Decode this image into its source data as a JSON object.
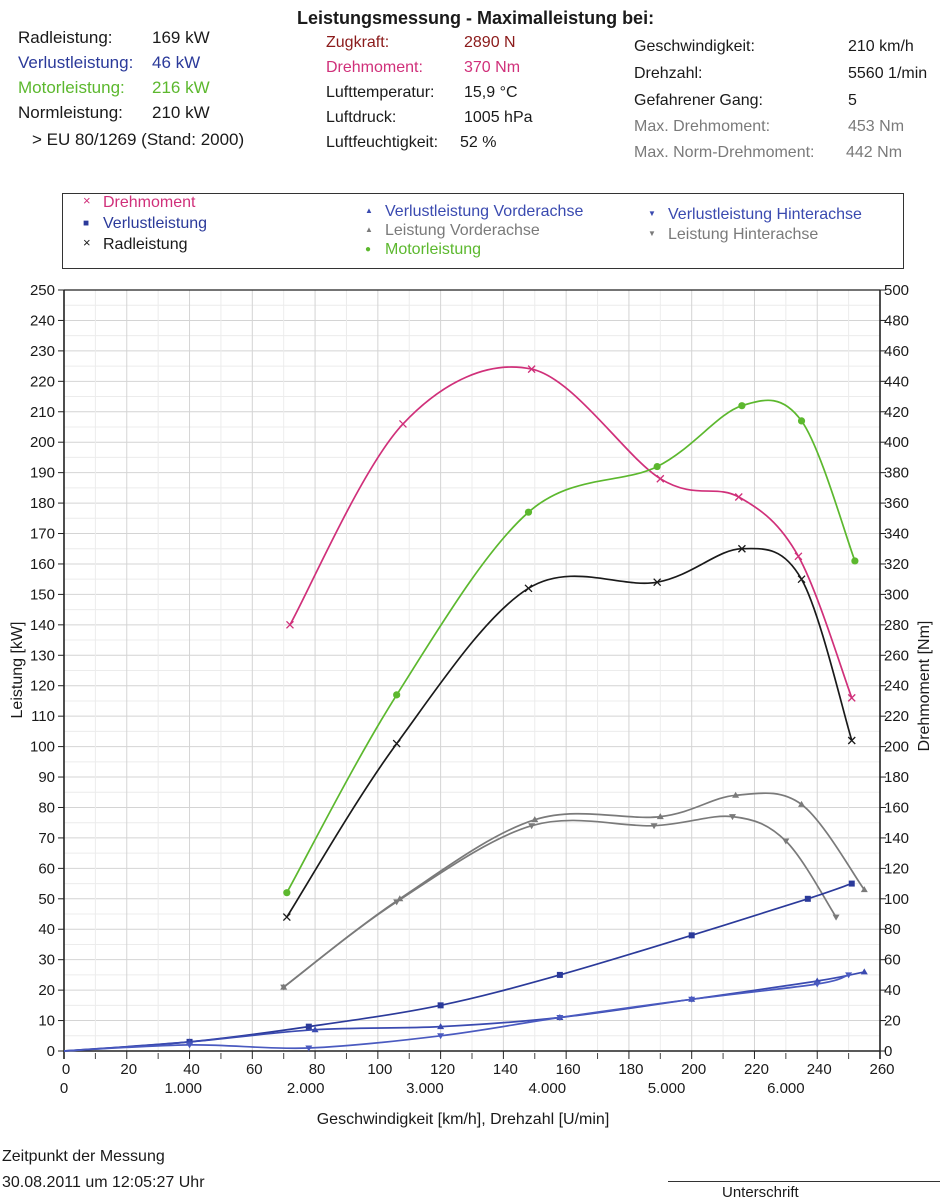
{
  "summary": [
    {
      "label": "Radleistung:",
      "value": "169 kW",
      "color": "#1a1a1a"
    },
    {
      "label": "Verlustleistung:",
      "value": "46 kW",
      "color": "#2b3a9a"
    },
    {
      "label": "Motorleistung:",
      "value": "216 kW",
      "color": "#5cb82e"
    },
    {
      "label": "Normleistung:",
      "value": "210 kW",
      "color": "#1a1a1a"
    }
  ],
  "norm_note": "> EU 80/1269 (Stand: 2000)",
  "title": "Leistungsmessung - Maximalleistung bei:",
  "mid": [
    {
      "label": "Zugkraft:",
      "value": "2890 N",
      "color": "#8b1a1a"
    },
    {
      "label": "Drehmoment:",
      "value": "370 Nm",
      "color": "#d0307a"
    },
    {
      "label": "Lufttemperatur:",
      "value": "15,9 °C",
      "color": "#1a1a1a"
    },
    {
      "label": "Luftdruck:",
      "value": "1005 hPa",
      "color": "#1a1a1a"
    },
    {
      "label": "Luftfeuchtigkeit:",
      "value": "52 %",
      "color": "#1a1a1a"
    }
  ],
  "right": [
    {
      "label": "Geschwindigkeit:",
      "value": "210 km/h",
      "color": "#1a1a1a"
    },
    {
      "label": "Drehzahl:",
      "value": "5560 1/min",
      "color": "#1a1a1a"
    },
    {
      "label": "Gefahrener Gang:",
      "value": "5",
      "color": "#1a1a1a"
    },
    {
      "label": "Max. Drehmoment:",
      "value": "453 Nm",
      "color": "#7a7a7a"
    },
    {
      "label": "Max. Norm-Drehmoment:",
      "value": "442 Nm",
      "color": "#7a7a7a"
    }
  ],
  "legend": [
    {
      "label": "Drehmoment",
      "marker": "×",
      "color": "#d0307a"
    },
    {
      "label": "Verlustleistung",
      "marker": "■",
      "color": "#2b3a9a"
    },
    {
      "label": "Radleistung",
      "marker": "×",
      "color": "#1a1a1a"
    },
    {
      "label": "Verlustleistung Vorderachse",
      "marker": "▲",
      "color": "#3a4ab0"
    },
    {
      "label": "Leistung Vorderachse",
      "marker": "▲",
      "color": "#7a7a7a"
    },
    {
      "label": "Motorleistung",
      "marker": "●",
      "color": "#5cb82e"
    },
    {
      "label": "Verlustleistung Hinterachse",
      "marker": "▼",
      "color": "#3a4ab0"
    },
    {
      "label": "Leistung Hinterachse",
      "marker": "▼",
      "color": "#7a7a7a"
    }
  ],
  "footer": {
    "caption": "Zeitpunkt der Messung",
    "timestamp": "30.08.2011 um 12:05:27 Uhr",
    "signature": "Unterschrift"
  },
  "chart_data": {
    "type": "line",
    "ylabel": "Leistung [kW]",
    "y2label": "Drehmoment [Nm]",
    "xlabel": "Geschwindigkeit [km/h], Drehzahl [U/min]",
    "xlim": [
      0,
      260
    ],
    "ylim": [
      0,
      250
    ],
    "y2lim": [
      0,
      500
    ],
    "x_ticks": [
      0,
      20,
      40,
      60,
      80,
      100,
      120,
      140,
      160,
      180,
      200,
      220,
      240,
      260
    ],
    "rpm_ticks": [
      {
        "label": "0",
        "x": 0
      },
      {
        "label": "1.000",
        "x": 38
      },
      {
        "label": "2.000",
        "x": 77
      },
      {
        "label": "3.000",
        "x": 115
      },
      {
        "label": "4.000",
        "x": 154
      },
      {
        "label": "5.000",
        "x": 192
      },
      {
        "label": "6.000",
        "x": 230
      }
    ],
    "y_ticks": [
      0,
      10,
      20,
      30,
      40,
      50,
      60,
      70,
      80,
      90,
      100,
      110,
      120,
      130,
      140,
      150,
      160,
      170,
      180,
      190,
      200,
      210,
      220,
      230,
      240,
      250
    ],
    "y2_ticks": [
      0,
      20,
      40,
      60,
      80,
      100,
      120,
      140,
      160,
      180,
      200,
      220,
      240,
      260,
      280,
      300,
      320,
      340,
      360,
      380,
      400,
      420,
      440,
      460,
      480,
      500
    ],
    "grid": true,
    "legend_position": "top",
    "series": [
      {
        "name": "Drehmoment",
        "axis": "right",
        "color": "#d0307a",
        "marker": "x",
        "x": [
          72,
          108,
          149,
          190,
          215,
          234,
          251
        ],
        "y": [
          280,
          412,
          448,
          376,
          364,
          325,
          232
        ]
      },
      {
        "name": "Motorleistung",
        "axis": "left",
        "color": "#5cb82e",
        "marker": "o",
        "x": [
          71,
          106,
          148,
          189,
          216,
          235,
          252
        ],
        "y": [
          52,
          117,
          177,
          192,
          212,
          207,
          161
        ]
      },
      {
        "name": "Radleistung",
        "axis": "left",
        "color": "#1a1a1a",
        "marker": "x",
        "x": [
          71,
          106,
          148,
          189,
          216,
          235,
          251
        ],
        "y": [
          44,
          101,
          152,
          154,
          165,
          155,
          102
        ]
      },
      {
        "name": "Leistung Vorderachse",
        "axis": "left",
        "color": "#7a7a7a",
        "marker": "^",
        "x": [
          70,
          107,
          150,
          190,
          214,
          235,
          255
        ],
        "y": [
          21,
          50,
          76,
          77,
          84,
          81,
          53
        ]
      },
      {
        "name": "Leistung Hinterachse",
        "axis": "left",
        "color": "#7a7a7a",
        "marker": "v",
        "x": [
          70,
          106,
          149,
          188,
          213,
          230,
          246
        ],
        "y": [
          21,
          49,
          74,
          74,
          77,
          69,
          44
        ]
      },
      {
        "name": "Verlustleistung",
        "axis": "left",
        "color": "#2b3a9a",
        "marker": "s",
        "x": [
          0,
          40,
          78,
          120,
          158,
          200,
          237,
          251
        ],
        "y": [
          0,
          3,
          8,
          15,
          25,
          38,
          50,
          55
        ]
      },
      {
        "name": "Verlustleistung Vorderachse",
        "axis": "left",
        "color": "#3a4ab0",
        "marker": "^",
        "x": [
          0,
          40,
          80,
          120,
          158,
          200,
          240,
          255
        ],
        "y": [
          0,
          3,
          7,
          8,
          11,
          17,
          23,
          26
        ]
      },
      {
        "name": "Verlustleistung Hinterachse",
        "axis": "left",
        "color": "#4a5ac0",
        "marker": "v",
        "x": [
          0,
          40,
          78,
          120,
          158,
          200,
          240,
          250
        ],
        "y": [
          0,
          2,
          1,
          5,
          11,
          17,
          22,
          25
        ]
      }
    ]
  }
}
